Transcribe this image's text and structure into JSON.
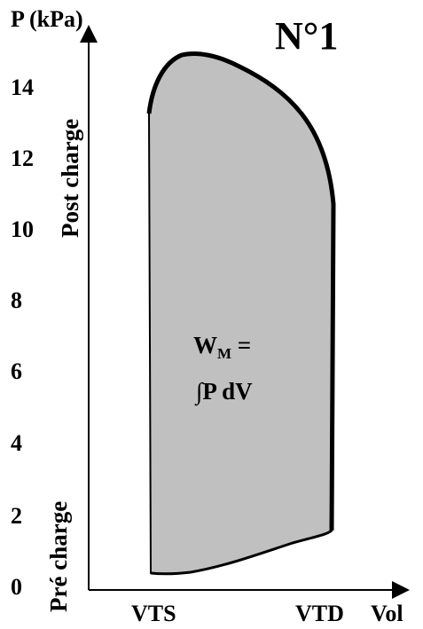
{
  "figure": {
    "title": "N°1",
    "y_axis_label": "P (kPa)",
    "x_axis_label": "Vol",
    "side_label_top": "Post charge",
    "side_label_bottom": "Pré charge",
    "y_ticks": [
      "0",
      "2",
      "4",
      "6",
      "8",
      "10",
      "12",
      "14"
    ],
    "x_ticks": [
      "VTS",
      "VTD"
    ],
    "annotation": {
      "line1_main": "W",
      "line1_sub": "M",
      "line1_suffix": " =",
      "line2": "∫P dV"
    },
    "colors": {
      "loop_fill": "#c0c0c0",
      "loop_stroke": "#000000",
      "axis": "#000000",
      "text": "#000000",
      "background": "#ffffff"
    }
  }
}
